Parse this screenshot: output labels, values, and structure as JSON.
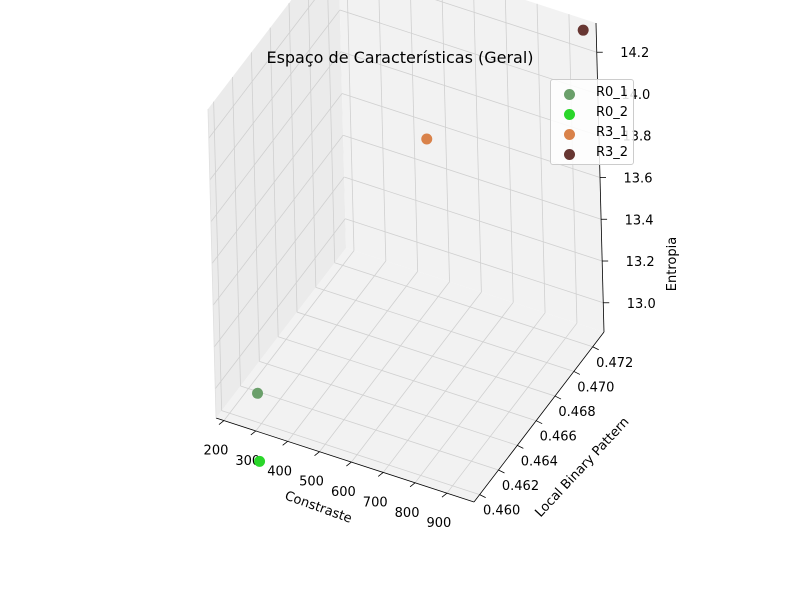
{
  "chart_data": {
    "type": "scatter",
    "title": "Espaço de Características (Geral)",
    "xlabel": "Constraste",
    "ylabel": "Local Binary Pattern",
    "zlabel": "Entropia",
    "x_ticks": [
      "200",
      "300",
      "400",
      "500",
      "600",
      "700",
      "800",
      "900"
    ],
    "y_ticks": [
      "0.460",
      "0.462",
      "0.464",
      "0.466",
      "0.468",
      "0.470",
      "0.472"
    ],
    "z_ticks": [
      "13.0",
      "13.2",
      "13.4",
      "13.6",
      "13.8",
      "14.0",
      "14.2"
    ],
    "series": [
      {
        "name": "R0_1",
        "color": "#6a9f6a",
        "x": 290,
        "y": 0.46,
        "z": 13.0
      },
      {
        "name": "R0_2",
        "color": "#2ad62a",
        "x": 260,
        "y": 0.461,
        "z": 12.6
      },
      {
        "name": "R3_1",
        "color": "#d9824a",
        "x": 600,
        "y": 0.468,
        "z": 13.9
      },
      {
        "name": "R3_2",
        "color": "#673632",
        "x": 950,
        "y": 0.473,
        "z": 14.3
      }
    ],
    "legend_position": "top-right",
    "grid": true
  }
}
